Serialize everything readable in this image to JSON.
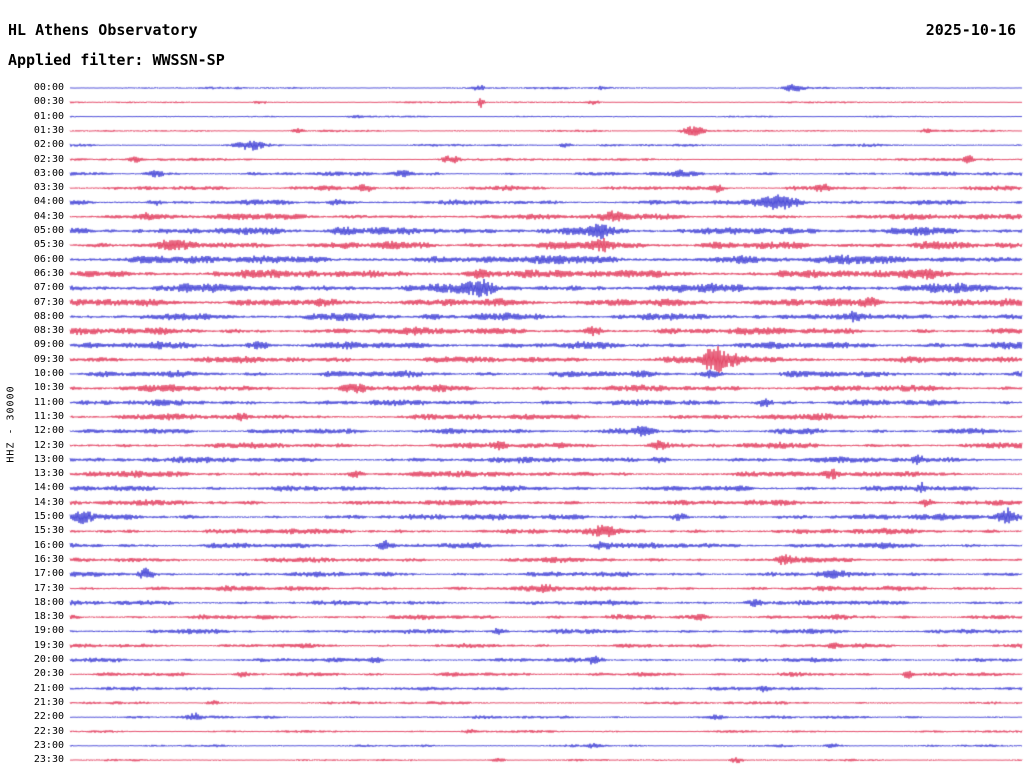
{
  "header": {
    "station_title": "HL Athens Observatory",
    "date": "2025-10-16",
    "filter_label": "Applied filter: WWSSN-SP"
  },
  "axis": {
    "left_label": "HHZ - 30000",
    "first_time": "00:00",
    "last_time": "23:30",
    "row_interval_minutes": 30
  },
  "colors": {
    "trace_blue": "#1a1acd",
    "trace_red": "#dc143c",
    "background": "#ffffff",
    "text": "#000000"
  },
  "chart_data": {
    "type": "line",
    "subtype": "helicorder",
    "title": "HL Athens Observatory",
    "date": "2025-10-16",
    "filter": "WWSSN-SP",
    "channel": "HHZ",
    "scale": 30000,
    "row_interval_minutes": 30,
    "amplitude_units": "relative-px",
    "burst_format": "[position_fraction, extra_amplitude, width_fraction]",
    "rows": [
      {
        "time": "00:00",
        "color": "blue",
        "amp": 1.4,
        "bursts": [
          [
            0.43,
            2.5,
            0.006
          ],
          [
            0.56,
            2,
            0.008
          ],
          [
            0.76,
            3,
            0.01
          ]
        ]
      },
      {
        "time": "00:30",
        "color": "red",
        "amp": 1.2,
        "bursts": [
          [
            0.432,
            6,
            0.003
          ],
          [
            0.55,
            2.5,
            0.008
          ],
          [
            0.2,
            1.5,
            0.01
          ]
        ]
      },
      {
        "time": "01:00",
        "color": "blue",
        "amp": 1.1,
        "bursts": [
          [
            0.3,
            1.5,
            0.01
          ]
        ]
      },
      {
        "time": "01:30",
        "color": "red",
        "amp": 1.4,
        "bursts": [
          [
            0.655,
            4.5,
            0.012
          ],
          [
            0.24,
            2.5,
            0.006
          ],
          [
            0.9,
            2,
            0.008
          ]
        ]
      },
      {
        "time": "02:00",
        "color": "blue",
        "amp": 1.7,
        "bursts": [
          [
            0.19,
            4.5,
            0.012
          ],
          [
            0.52,
            2,
            0.008
          ]
        ]
      },
      {
        "time": "02:30",
        "color": "red",
        "amp": 1.7,
        "bursts": [
          [
            0.4,
            3.5,
            0.01
          ],
          [
            0.945,
            3.5,
            0.005
          ],
          [
            0.07,
            2,
            0.008
          ]
        ]
      },
      {
        "time": "03:00",
        "color": "blue",
        "amp": 2.4,
        "bursts": [
          [
            0.09,
            3,
            0.01
          ],
          [
            0.35,
            2.5,
            0.01
          ],
          [
            0.64,
            2.5,
            0.008
          ]
        ]
      },
      {
        "time": "03:30",
        "color": "red",
        "amp": 2.8,
        "bursts": [
          [
            0.31,
            3.5,
            0.008
          ],
          [
            0.68,
            3.5,
            0.006
          ],
          [
            0.79,
            3,
            0.006
          ]
        ]
      },
      {
        "time": "04:00",
        "color": "blue",
        "amp": 3.0,
        "bursts": [
          [
            0.745,
            7.5,
            0.022
          ],
          [
            0.28,
            3,
            0.008
          ],
          [
            0.09,
            2.5,
            0.006
          ]
        ]
      },
      {
        "time": "04:30",
        "color": "red",
        "amp": 3.8,
        "bursts": [
          [
            0.57,
            3,
            0.01
          ],
          [
            0.08,
            2.5,
            0.008
          ]
        ]
      },
      {
        "time": "05:00",
        "color": "blue",
        "amp": 4.8,
        "bursts": [
          [
            0.285,
            4,
            0.01
          ],
          [
            0.56,
            4,
            0.012
          ]
        ]
      },
      {
        "time": "05:30",
        "color": "red",
        "amp": 4.8,
        "bursts": [
          [
            0.1,
            3,
            0.01
          ],
          [
            0.56,
            5,
            0.012
          ]
        ]
      },
      {
        "time": "06:00",
        "color": "blue",
        "amp": 5.2,
        "bursts": [
          [
            0.71,
            4,
            0.015
          ]
        ]
      },
      {
        "time": "06:30",
        "color": "red",
        "amp": 5.2,
        "bursts": [
          [
            0.43,
            4,
            0.012
          ],
          [
            0.9,
            3,
            0.01
          ]
        ]
      },
      {
        "time": "07:00",
        "color": "blue",
        "amp": 5.2,
        "bursts": [
          [
            0.432,
            7,
            0.012
          ]
        ]
      },
      {
        "time": "07:30",
        "color": "red",
        "amp": 5.0,
        "bursts": [
          [
            0.84,
            3,
            0.01
          ]
        ]
      },
      {
        "time": "08:00",
        "color": "blue",
        "amp": 4.4,
        "bursts": [
          [
            0.825,
            5.5,
            0.006
          ],
          [
            0.38,
            3,
            0.01
          ]
        ]
      },
      {
        "time": "08:30",
        "color": "red",
        "amp": 4.4,
        "bursts": [
          [
            0.55,
            3,
            0.01
          ]
        ]
      },
      {
        "time": "09:00",
        "color": "blue",
        "amp": 4.3,
        "bursts": [
          [
            0.2,
            3,
            0.01
          ]
        ]
      },
      {
        "time": "09:30",
        "color": "red",
        "amp": 4.0,
        "bursts": [
          [
            0.675,
            8.5,
            0.01
          ],
          [
            0.69,
            6,
            0.02
          ]
        ]
      },
      {
        "time": "10:00",
        "color": "blue",
        "amp": 3.9,
        "bursts": [
          [
            0.67,
            3,
            0.01
          ]
        ]
      },
      {
        "time": "10:30",
        "color": "red",
        "amp": 3.9,
        "bursts": [
          [
            0.3,
            3,
            0.01
          ]
        ]
      },
      {
        "time": "11:00",
        "color": "blue",
        "amp": 3.6,
        "bursts": [
          [
            0.73,
            4,
            0.008
          ]
        ]
      },
      {
        "time": "11:30",
        "color": "red",
        "amp": 3.6,
        "bursts": [
          [
            0.18,
            3,
            0.008
          ]
        ]
      },
      {
        "time": "12:00",
        "color": "blue",
        "amp": 3.4,
        "bursts": [
          [
            0.6,
            3,
            0.01
          ]
        ]
      },
      {
        "time": "12:30",
        "color": "red",
        "amp": 3.5,
        "bursts": [
          [
            0.62,
            4,
            0.01
          ],
          [
            0.45,
            3,
            0.008
          ]
        ]
      },
      {
        "time": "13:00",
        "color": "blue",
        "amp": 3.5,
        "bursts": [
          [
            0.89,
            5,
            0.005
          ],
          [
            0.62,
            3,
            0.008
          ]
        ]
      },
      {
        "time": "13:30",
        "color": "red",
        "amp": 3.5,
        "bursts": [
          [
            0.8,
            4.5,
            0.006
          ],
          [
            0.3,
            3,
            0.008
          ]
        ]
      },
      {
        "time": "14:00",
        "color": "blue",
        "amp": 3.4,
        "bursts": [
          [
            0.895,
            5,
            0.005
          ]
        ]
      },
      {
        "time": "14:30",
        "color": "red",
        "amp": 3.4,
        "bursts": [
          [
            0.9,
            4,
            0.006
          ]
        ]
      },
      {
        "time": "15:00",
        "color": "blue",
        "amp": 3.5,
        "bursts": [
          [
            0.015,
            5.5,
            0.01
          ],
          [
            0.985,
            8,
            0.008
          ],
          [
            0.64,
            3.5,
            0.008
          ]
        ]
      },
      {
        "time": "15:30",
        "color": "red",
        "amp": 3.4,
        "bursts": [
          [
            0.56,
            4,
            0.01
          ]
        ]
      },
      {
        "time": "16:00",
        "color": "blue",
        "amp": 3.4,
        "bursts": [
          [
            0.33,
            4.5,
            0.006
          ],
          [
            0.56,
            4,
            0.01
          ]
        ]
      },
      {
        "time": "16:30",
        "color": "red",
        "amp": 3.1,
        "bursts": [
          [
            0.75,
            3.5,
            0.008
          ]
        ]
      },
      {
        "time": "17:00",
        "color": "blue",
        "amp": 3.1,
        "bursts": [
          [
            0.08,
            4.5,
            0.008
          ],
          [
            0.8,
            3.5,
            0.01
          ]
        ]
      },
      {
        "time": "17:30",
        "color": "red",
        "amp": 3.0,
        "bursts": [
          [
            0.5,
            3,
            0.008
          ]
        ]
      },
      {
        "time": "18:00",
        "color": "blue",
        "amp": 3.0,
        "bursts": [
          [
            0.72,
            3.5,
            0.01
          ]
        ]
      },
      {
        "time": "18:30",
        "color": "red",
        "amp": 2.9,
        "bursts": [
          [
            0.66,
            3,
            0.008
          ]
        ]
      },
      {
        "time": "19:00",
        "color": "blue",
        "amp": 2.9,
        "bursts": [
          [
            0.45,
            3,
            0.008
          ]
        ]
      },
      {
        "time": "19:30",
        "color": "red",
        "amp": 2.6,
        "bursts": [
          [
            0.8,
            3,
            0.006
          ]
        ]
      },
      {
        "time": "20:00",
        "color": "blue",
        "amp": 2.6,
        "bursts": [
          [
            0.32,
            3.5,
            0.006
          ],
          [
            0.55,
            3,
            0.008
          ]
        ]
      },
      {
        "time": "20:30",
        "color": "red",
        "amp": 2.5,
        "bursts": [
          [
            0.88,
            4.5,
            0.004
          ],
          [
            0.18,
            2.5,
            0.008
          ]
        ]
      },
      {
        "time": "21:00",
        "color": "blue",
        "amp": 2.1,
        "bursts": [
          [
            0.73,
            2.5,
            0.008
          ]
        ]
      },
      {
        "time": "21:30",
        "color": "red",
        "amp": 1.9,
        "bursts": [
          [
            0.15,
            2.5,
            0.006
          ]
        ]
      },
      {
        "time": "22:00",
        "color": "blue",
        "amp": 1.9,
        "bursts": [
          [
            0.13,
            3.5,
            0.006
          ],
          [
            0.68,
            2.5,
            0.008
          ]
        ]
      },
      {
        "time": "22:30",
        "color": "red",
        "amp": 1.6,
        "bursts": [
          [
            0.42,
            2,
            0.008
          ]
        ]
      },
      {
        "time": "23:00",
        "color": "blue",
        "amp": 1.5,
        "bursts": [
          [
            0.55,
            2.5,
            0.008
          ],
          [
            0.8,
            3,
            0.006
          ]
        ]
      },
      {
        "time": "23:30",
        "color": "red",
        "amp": 1.3,
        "bursts": [
          [
            0.7,
            3.5,
            0.006
          ],
          [
            0.45,
            2,
            0.008
          ]
        ]
      }
    ]
  }
}
